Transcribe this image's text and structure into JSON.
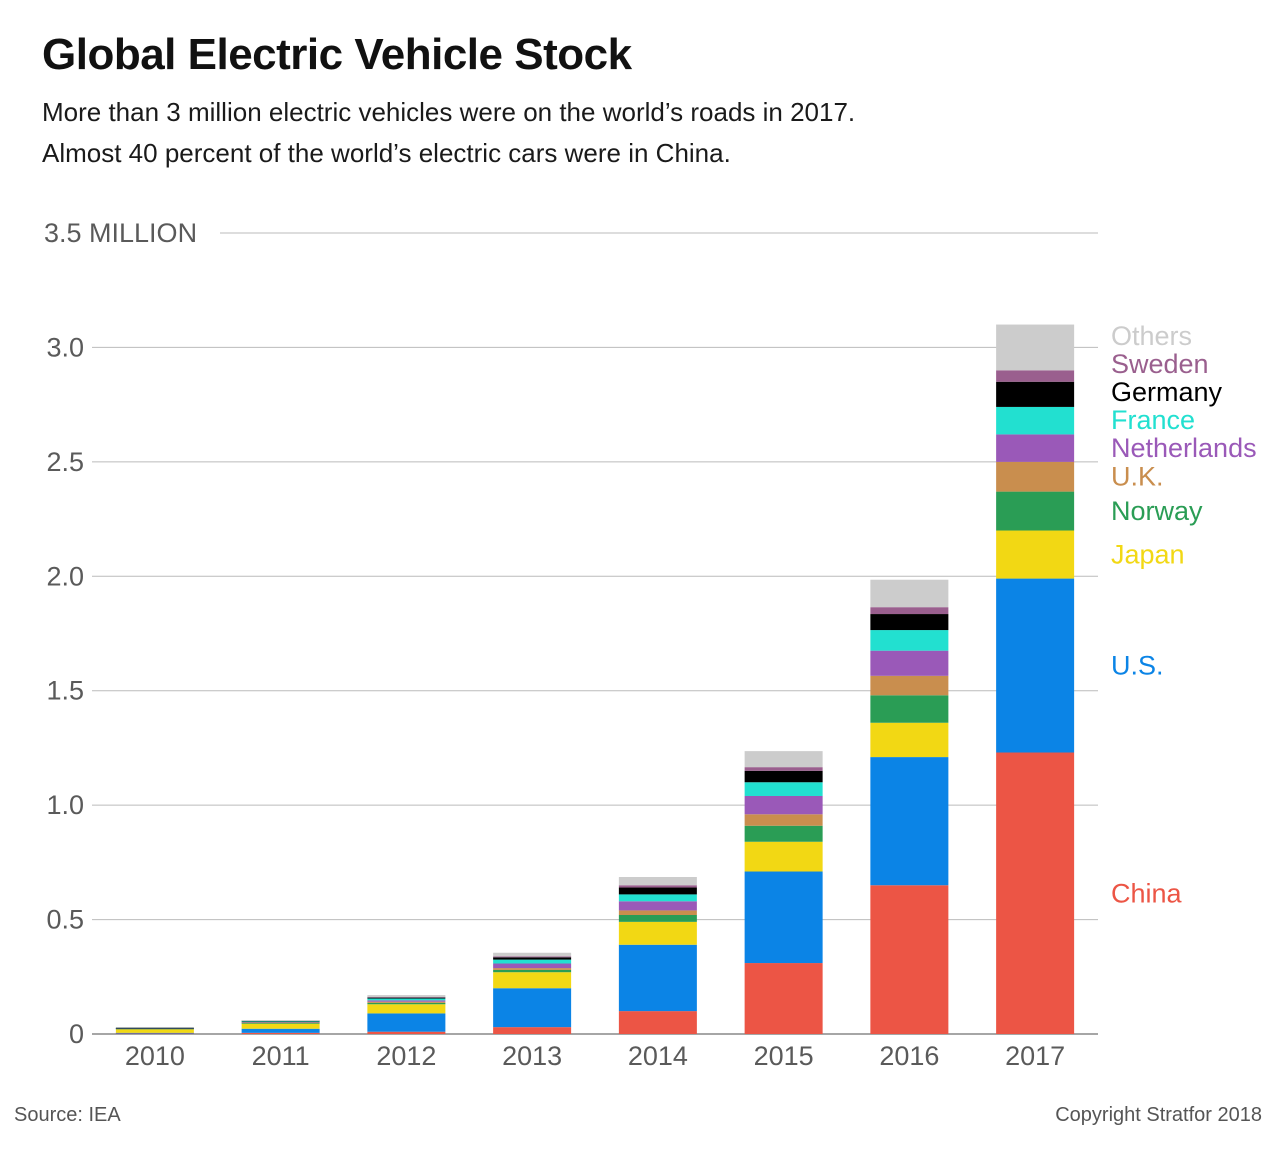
{
  "title": "Global Electric Vehicle Stock",
  "subtitle_lines": [
    "More than 3 million electric vehicles were on the world’s roads in 2017.",
    "Almost 40 percent of the world’s electric cars were in China."
  ],
  "source": "Source: IEA",
  "copyright": "Copyright Stratfor 2018",
  "chart_data": {
    "type": "bar",
    "stacked": true,
    "categories": [
      "2010",
      "2011",
      "2012",
      "2013",
      "2014",
      "2015",
      "2016",
      "2017"
    ],
    "y_tick_labels": [
      {
        "value": 0,
        "label": "0"
      },
      {
        "value": 0.5,
        "label": "0.5"
      },
      {
        "value": 1.0,
        "label": "1.0"
      },
      {
        "value": 1.5,
        "label": "1.5"
      },
      {
        "value": 2.0,
        "label": "2.0"
      },
      {
        "value": 2.5,
        "label": "2.5"
      },
      {
        "value": 3.0,
        "label": "3.0"
      },
      {
        "value": 3.5,
        "label": "3.5 MILLION"
      }
    ],
    "ylim": [
      0,
      3.5
    ],
    "grid": true,
    "legend": "right, labels aligned to 2017 bar segments",
    "series": [
      {
        "name": "China",
        "color": "#ec5545",
        "values": [
          0.002,
          0.005,
          0.01,
          0.03,
          0.1,
          0.31,
          0.65,
          1.23
        ]
      },
      {
        "name": "U.S.",
        "color": "#0b84e6",
        "values": [
          0.003,
          0.018,
          0.08,
          0.17,
          0.29,
          0.4,
          0.56,
          0.76
        ]
      },
      {
        "name": "Japan",
        "color": "#f2d814",
        "values": [
          0.015,
          0.022,
          0.04,
          0.07,
          0.1,
          0.13,
          0.15,
          0.21
        ]
      },
      {
        "name": "Norway",
        "color": "#2a9d55",
        "values": [
          0.001,
          0.003,
          0.006,
          0.01,
          0.03,
          0.07,
          0.12,
          0.17
        ]
      },
      {
        "name": "U.K.",
        "color": "#c98e4e",
        "values": [
          0.001,
          0.002,
          0.005,
          0.008,
          0.02,
          0.05,
          0.085,
          0.13
        ]
      },
      {
        "name": "Netherlands",
        "color": "#9a59b8",
        "values": [
          0.001,
          0.002,
          0.006,
          0.02,
          0.04,
          0.08,
          0.11,
          0.12
        ]
      },
      {
        "name": "France",
        "color": "#22e0d0",
        "values": [
          0.001,
          0.003,
          0.008,
          0.017,
          0.03,
          0.06,
          0.09,
          0.12
        ]
      },
      {
        "name": "Germany",
        "color": "#000000",
        "values": [
          0.001,
          0.002,
          0.004,
          0.01,
          0.03,
          0.05,
          0.07,
          0.11
        ]
      },
      {
        "name": "Sweden",
        "color": "#9a5f8e",
        "values": [
          0.0,
          0.0,
          0.002,
          0.004,
          0.01,
          0.016,
          0.03,
          0.05
        ]
      },
      {
        "name": "Others",
        "color": "#cccccc",
        "values": [
          0.0,
          0.003,
          0.009,
          0.016,
          0.036,
          0.07,
          0.12,
          0.2
        ]
      }
    ]
  }
}
